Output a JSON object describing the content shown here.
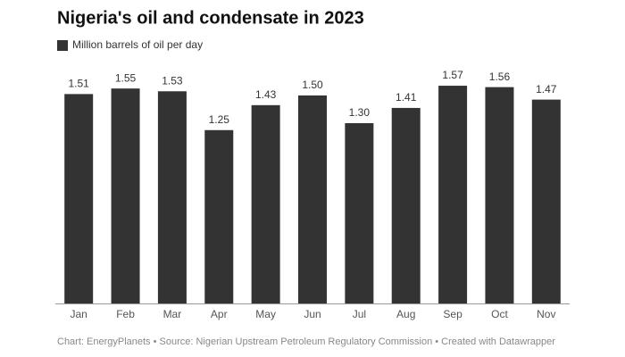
{
  "chart_data": {
    "type": "bar",
    "title": "Nigeria's oil and condensate in 2023",
    "categories": [
      "Jan",
      "Feb",
      "Mar",
      "Apr",
      "May",
      "Jun",
      "Jul",
      "Aug",
      "Sep",
      "Oct",
      "Nov"
    ],
    "series": [
      {
        "name": "Million barrels of oil per day",
        "color": "#333333",
        "values": [
          1.51,
          1.55,
          1.53,
          1.25,
          1.43,
          1.5,
          1.3,
          1.41,
          1.57,
          1.56,
          1.47
        ],
        "value_labels": [
          "1.51",
          "1.55",
          "1.53",
          "1.25",
          "1.43",
          "1.50",
          "1.30",
          "1.41",
          "1.57",
          "1.56",
          "1.47"
        ]
      }
    ],
    "ylim": [
      0,
      1.6
    ],
    "source": "Chart: EnergyPlanets • Source: Nigerian Upstream Petroleum Regulatory Commission • Created with Datawrapper"
  }
}
